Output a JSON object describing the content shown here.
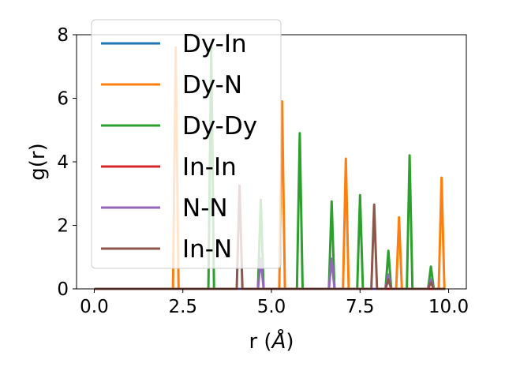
{
  "chart_data": {
    "type": "line",
    "title": "",
    "xlabel": "r",
    "xlabel_unit": "Å",
    "ylabel": "g(r)",
    "xlim": [
      -0.5,
      10.5
    ],
    "ylim": [
      0,
      8
    ],
    "x_ticks": [
      0.0,
      2.5,
      5.0,
      7.5,
      10.0
    ],
    "x_tick_labels": [
      "0.0",
      "2.5",
      "5.0",
      "7.5",
      "10.0"
    ],
    "y_ticks": [
      0,
      2,
      4,
      6,
      8
    ],
    "y_tick_labels": [
      "0",
      "2",
      "4",
      "6",
      "8"
    ],
    "grid": false,
    "legend_position": "top-left",
    "series": [
      {
        "name": "Dy-In",
        "color": "#1f77b4",
        "peaks": []
      },
      {
        "name": "Dy-N",
        "color": "#ff7f0e",
        "peaks": [
          [
            2.3,
            7.6
          ],
          [
            5.3,
            5.9
          ],
          [
            7.1,
            4.1
          ],
          [
            8.6,
            2.25
          ],
          [
            9.8,
            3.5
          ]
        ]
      },
      {
        "name": "Dy-Dy",
        "color": "#2ca02c",
        "peaks": [
          [
            3.3,
            7.6
          ],
          [
            4.7,
            2.8
          ],
          [
            5.8,
            4.9
          ],
          [
            6.7,
            2.75
          ],
          [
            7.5,
            2.95
          ],
          [
            8.3,
            1.2
          ],
          [
            8.9,
            4.2
          ],
          [
            9.5,
            0.7
          ]
        ]
      },
      {
        "name": "In-In",
        "color": "#d62728",
        "peaks": []
      },
      {
        "name": "N-N",
        "color": "#9467bd",
        "peaks": [
          [
            4.7,
            0.95
          ],
          [
            6.7,
            0.95
          ],
          [
            8.3,
            0.45
          ],
          [
            9.5,
            0.3
          ]
        ]
      },
      {
        "name": "In-N",
        "color": "#8c564b",
        "peaks": [
          [
            4.1,
            3.25
          ],
          [
            7.9,
            2.65
          ],
          [
            8.3,
            0.3
          ],
          [
            9.5,
            0.2
          ]
        ]
      }
    ]
  }
}
